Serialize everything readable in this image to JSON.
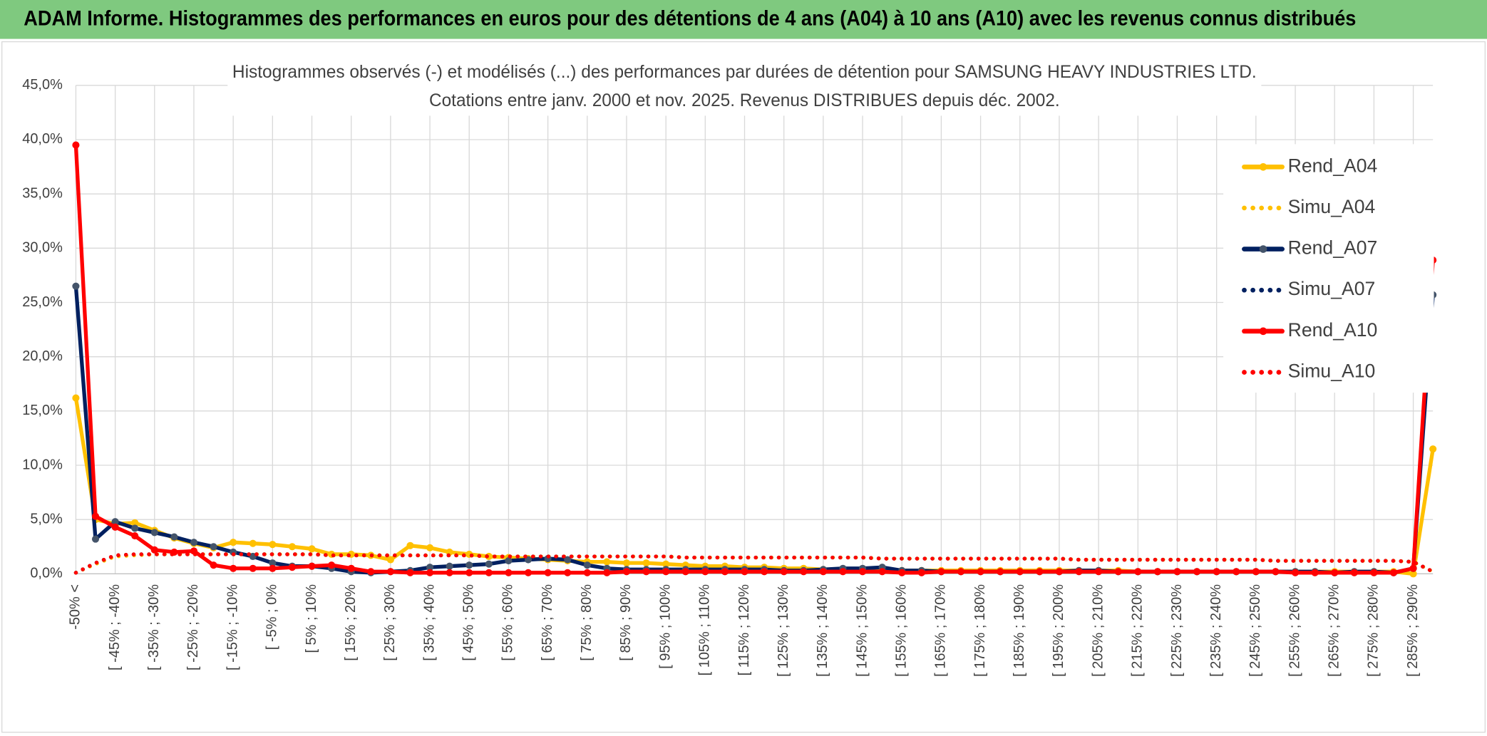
{
  "header": {
    "title": "ADAM Informe. Histogrammes des performances en euros pour des détentions de 4 ans (A04) à 10 ans (A10) avec les revenus connus distribués"
  },
  "chart_data": {
    "type": "line",
    "title": "Histogrammes observés (-) et modélisés (...) des performances par durées de détention pour SAMSUNG HEAVY INDUSTRIES LTD.",
    "subtitle": "Cotations entre janv. 2000 et nov. 2025. Revenus DISTRIBUES depuis déc. 2002.",
    "categories": [
      "-50% <",
      null,
      "[ -45% ; -40%",
      null,
      "[ -35% ; -30%",
      null,
      "[ -25% ; -20%",
      null,
      "[ -15% ; -10%",
      null,
      "[ -5% ; 0%",
      null,
      "[ 5% ; 10%",
      null,
      "[ 15% ; 20%",
      null,
      "[ 25% ; 30%",
      null,
      "[ 35% ; 40%",
      null,
      "[ 45% ; 50%",
      null,
      "[ 55% ; 60%",
      null,
      "[ 65% ; 70%",
      null,
      "[ 75% ; 80%",
      null,
      "[ 85% ; 90%",
      null,
      "[ 95% ; 100%",
      null,
      "[ 105% ; 110%",
      null,
      "[ 115% ; 120%",
      null,
      "[ 125% ; 130%",
      null,
      "[ 135% ; 140%",
      null,
      "[ 145% ; 150%",
      null,
      "[ 155% ; 160%",
      null,
      "[ 165% ; 170%",
      null,
      "[ 175% ; 180%",
      null,
      "[ 185% ; 190%",
      null,
      "[ 195% ; 200%",
      null,
      "[ 205% ; 210%",
      null,
      "[ 215% ; 220%",
      null,
      "[ 225% ; 230%",
      null,
      "[ 235% ; 240%",
      null,
      "[ 245% ; 250%",
      null,
      "[ 255% ; 260%",
      null,
      "[ 265% ; 270%",
      null,
      "[ 275% ; 280%",
      null,
      "[ 285% ; 290%",
      null
    ],
    "series": [
      {
        "name": "Rend_A04",
        "color": "#ffc000",
        "line_style": "solid",
        "marker": true,
        "values": [
          16.2,
          5.0,
          4.6,
          4.7,
          4.0,
          3.3,
          2.8,
          2.4,
          2.9,
          2.8,
          2.7,
          2.5,
          2.3,
          1.8,
          1.8,
          1.7,
          1.3,
          2.6,
          2.4,
          2.0,
          1.8,
          1.6,
          1.5,
          1.4,
          1.3,
          1.2,
          1.1,
          1.1,
          1.0,
          1.0,
          0.9,
          0.8,
          0.7,
          0.7,
          0.6,
          0.6,
          0.5,
          0.5,
          0.4,
          0.4,
          0.4,
          0.4,
          0.3,
          0.3,
          0.3,
          0.3,
          0.3,
          0.3,
          0.3,
          0.3,
          0.3,
          0.3,
          0.3,
          0.3,
          0.2,
          0.2,
          0.2,
          0.2,
          0.2,
          0.2,
          0.2,
          0.2,
          0.2,
          0.2,
          0.2,
          0.2,
          0.2,
          0.2,
          0.0,
          11.5
        ]
      },
      {
        "name": "Simu_A04",
        "color": "#ffc000",
        "line_style": "dotted",
        "marker": false,
        "values": [
          0.1,
          0.9,
          1.6,
          1.7,
          1.8,
          1.8,
          1.8,
          1.8,
          1.8,
          1.8,
          1.8,
          1.8,
          1.8,
          1.7,
          1.7,
          1.7,
          1.7,
          1.7,
          1.7,
          1.7,
          1.7,
          1.6,
          1.6,
          1.6,
          1.6,
          1.6,
          1.6,
          1.6,
          1.6,
          1.6,
          1.6,
          1.5,
          1.5,
          1.5,
          1.5,
          1.5,
          1.5,
          1.5,
          1.5,
          1.5,
          1.5,
          1.4,
          1.4,
          1.4,
          1.4,
          1.4,
          1.4,
          1.4,
          1.4,
          1.4,
          1.4,
          1.3,
          1.3,
          1.3,
          1.3,
          1.3,
          1.3,
          1.3,
          1.3,
          1.3,
          1.3,
          1.2,
          1.2,
          1.2,
          1.2,
          1.2,
          1.2,
          1.2,
          1.1,
          0.2
        ]
      },
      {
        "name": "Rend_A07",
        "color": "#002060",
        "line_style": "solid",
        "marker": true,
        "values": [
          26.5,
          3.2,
          4.8,
          4.2,
          3.8,
          3.4,
          2.9,
          2.5,
          2.0,
          1.6,
          1.0,
          0.7,
          0.7,
          0.5,
          0.2,
          0.1,
          0.2,
          0.3,
          0.6,
          0.7,
          0.8,
          0.9,
          1.2,
          1.3,
          1.4,
          1.3,
          0.8,
          0.5,
          0.4,
          0.4,
          0.4,
          0.4,
          0.4,
          0.4,
          0.4,
          0.4,
          0.3,
          0.3,
          0.4,
          0.5,
          0.5,
          0.6,
          0.3,
          0.3,
          0.2,
          0.2,
          0.2,
          0.2,
          0.2,
          0.2,
          0.2,
          0.3,
          0.3,
          0.2,
          0.2,
          0.2,
          0.2,
          0.2,
          0.2,
          0.2,
          0.2,
          0.2,
          0.2,
          0.2,
          0.1,
          0.2,
          0.2,
          0.1,
          0.5,
          25.7
        ]
      },
      {
        "name": "Simu_A07",
        "color": "#002060",
        "line_style": "dotted",
        "marker": false,
        "values": [
          0.1,
          1.0,
          1.7,
          1.8,
          1.8,
          1.8,
          1.8,
          1.8,
          1.8,
          1.8,
          1.8,
          1.8,
          1.8,
          1.7,
          1.7,
          1.7,
          1.7,
          1.7,
          1.7,
          1.7,
          1.7,
          1.6,
          1.6,
          1.6,
          1.6,
          1.6,
          1.6,
          1.6,
          1.6,
          1.6,
          1.6,
          1.5,
          1.5,
          1.5,
          1.5,
          1.5,
          1.5,
          1.5,
          1.5,
          1.5,
          1.5,
          1.4,
          1.4,
          1.4,
          1.4,
          1.4,
          1.4,
          1.4,
          1.4,
          1.4,
          1.4,
          1.3,
          1.3,
          1.3,
          1.3,
          1.3,
          1.3,
          1.3,
          1.3,
          1.3,
          1.3,
          1.2,
          1.2,
          1.2,
          1.2,
          1.2,
          1.2,
          1.2,
          1.1,
          0.2
        ]
      },
      {
        "name": "Rend_A10",
        "color": "#ff0000",
        "line_style": "solid",
        "marker": true,
        "values": [
          39.5,
          5.3,
          4.3,
          3.5,
          2.2,
          2.0,
          2.1,
          0.8,
          0.5,
          0.5,
          0.5,
          0.6,
          0.7,
          0.8,
          0.5,
          0.2,
          0.2,
          0.1,
          0.1,
          0.1,
          0.1,
          0.1,
          0.1,
          0.1,
          0.1,
          0.1,
          0.1,
          0.1,
          0.2,
          0.2,
          0.2,
          0.2,
          0.2,
          0.2,
          0.2,
          0.2,
          0.2,
          0.2,
          0.2,
          0.2,
          0.2,
          0.2,
          0.1,
          0.1,
          0.2,
          0.2,
          0.2,
          0.2,
          0.2,
          0.2,
          0.2,
          0.2,
          0.2,
          0.2,
          0.2,
          0.2,
          0.2,
          0.2,
          0.2,
          0.2,
          0.2,
          0.2,
          0.1,
          0.1,
          0.1,
          0.1,
          0.1,
          0.1,
          0.5,
          28.9
        ]
      },
      {
        "name": "Simu_A10",
        "color": "#ff0000",
        "line_style": "dotted",
        "marker": false,
        "values": [
          0.1,
          1.0,
          1.7,
          1.8,
          1.8,
          1.8,
          1.8,
          1.8,
          1.8,
          1.8,
          1.8,
          1.8,
          1.8,
          1.7,
          1.7,
          1.7,
          1.7,
          1.7,
          1.7,
          1.7,
          1.7,
          1.6,
          1.6,
          1.6,
          1.6,
          1.6,
          1.6,
          1.6,
          1.6,
          1.6,
          1.6,
          1.5,
          1.5,
          1.5,
          1.5,
          1.5,
          1.5,
          1.5,
          1.5,
          1.5,
          1.5,
          1.4,
          1.4,
          1.4,
          1.4,
          1.4,
          1.4,
          1.4,
          1.4,
          1.4,
          1.4,
          1.3,
          1.3,
          1.3,
          1.3,
          1.3,
          1.3,
          1.3,
          1.3,
          1.3,
          1.3,
          1.2,
          1.2,
          1.2,
          1.2,
          1.2,
          1.2,
          1.2,
          1.1,
          0.2
        ]
      }
    ],
    "ylim": [
      0,
      45
    ],
    "yticks": [
      {
        "value": 0,
        "label": "0,0%"
      },
      {
        "value": 5,
        "label": "5,0%"
      },
      {
        "value": 10,
        "label": "10,0%"
      },
      {
        "value": 15,
        "label": "15,0%"
      },
      {
        "value": 20,
        "label": "20,0%"
      },
      {
        "value": 25,
        "label": "25,0%"
      },
      {
        "value": 30,
        "label": "30,0%"
      },
      {
        "value": 35,
        "label": "35,0%"
      },
      {
        "value": 40,
        "label": "40,0%"
      },
      {
        "value": 45,
        "label": "45,0%"
      }
    ],
    "grid": true,
    "legend": "right"
  }
}
